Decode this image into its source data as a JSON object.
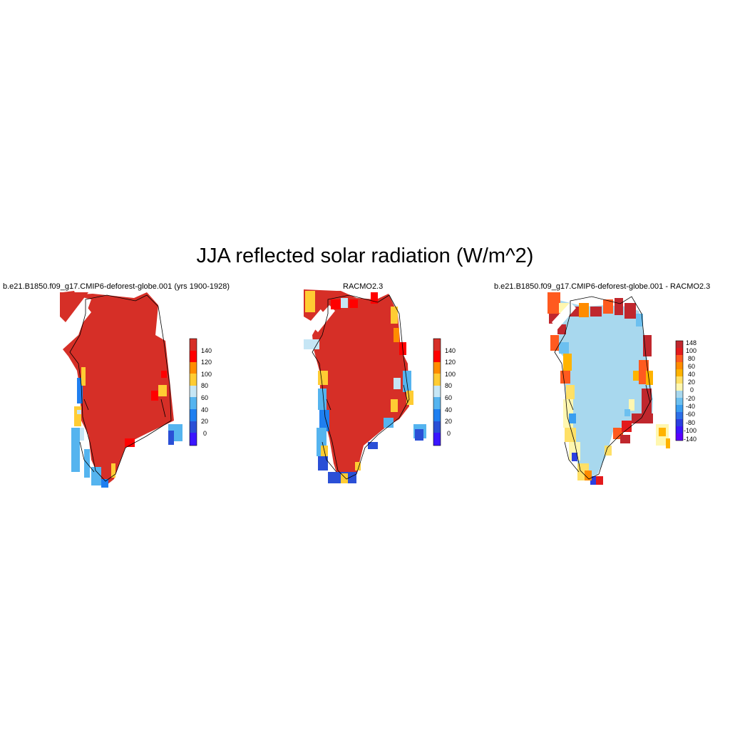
{
  "title": "JJA reflected solar radiation (W/m^2)",
  "panels": [
    {
      "title": "b.e21.B1850.f09_g17.CMIP6-deforest-globe.001 (yrs 1900-1928)",
      "colorbar": {
        "labels": [
          "140",
          "120",
          "100",
          "80",
          "60",
          "40",
          "20",
          "0"
        ],
        "colors": [
          "#d62f27",
          "#ff0000",
          "#ff8c00",
          "#ffcc33",
          "#c6e6f5",
          "#55b4ef",
          "#1f7ff0",
          "#2a4fd6",
          "#3b16ff"
        ]
      }
    },
    {
      "title": "RACMO2.3",
      "colorbar": {
        "labels": [
          "140",
          "120",
          "100",
          "80",
          "60",
          "40",
          "20",
          "0"
        ],
        "colors": [
          "#d62f27",
          "#ff0000",
          "#ff8c00",
          "#ffcc33",
          "#c6e6f5",
          "#55b4ef",
          "#1f7ff0",
          "#2a4fd6",
          "#3b16ff"
        ]
      }
    },
    {
      "title": "b.e21.B1850.f09_g17.CMIP6-deforest-globe.001 - RACMO2.3",
      "colorbar": {
        "labels": [
          "148",
          "100",
          "80",
          "60",
          "40",
          "20",
          "0",
          "-20",
          "-40",
          "-60",
          "-80",
          "-100",
          "-140"
        ],
        "colors": [
          "#c0272d",
          "#e31a1c",
          "#ff5a1f",
          "#ff8c00",
          "#ffb300",
          "#ffe066",
          "#fff7b0",
          "#a8d8ee",
          "#6cc0f0",
          "#3a9ef0",
          "#2d6fe8",
          "#2b3fe0",
          "#3b16ff",
          "#5a00ff"
        ]
      }
    }
  ]
}
